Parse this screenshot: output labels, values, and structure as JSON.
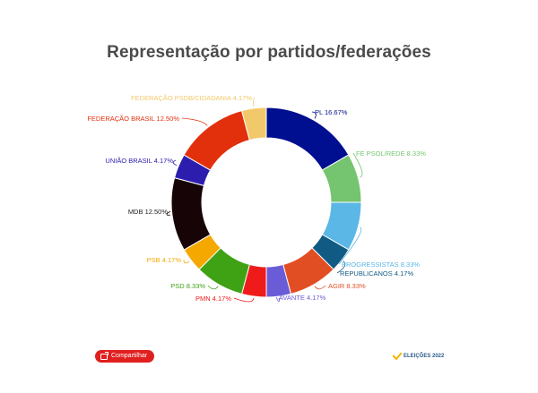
{
  "title": "Representação por partidos/federações",
  "share_label": "Compartilhar",
  "brand_label": "ELEIÇÕES 2022",
  "chart_data": {
    "type": "pie",
    "donut": true,
    "title": "Representação por partidos/federações",
    "slices": [
      {
        "label": "PL",
        "value": 16.67,
        "display": "PL 16.67%",
        "color": "#000f8f"
      },
      {
        "label": "FE PSOL/REDE",
        "value": 8.33,
        "display": "FE PSOL/REDE 8.33%",
        "color": "#75c46f"
      },
      {
        "label": "PROGRESSISTAS",
        "value": 8.33,
        "display": "PROGRESSISTAS 8.33%",
        "color": "#5ab7e6"
      },
      {
        "label": "REPUBLICANOS",
        "value": 4.17,
        "display": "REPUBLICANOS 4.17%",
        "color": "#105a84"
      },
      {
        "label": "AGIR",
        "value": 8.33,
        "display": "AGIR 8.33%",
        "color": "#e24e24"
      },
      {
        "label": "AVANTE",
        "value": 4.17,
        "display": "AVANTE 4.17%",
        "color": "#6a5bd6"
      },
      {
        "label": "PMN",
        "value": 4.17,
        "display": "PMN 4.17%",
        "color": "#ef1b1b"
      },
      {
        "label": "PSD",
        "value": 8.33,
        "display": "PSD 8.33%",
        "color": "#3fa214"
      },
      {
        "label": "PSB",
        "value": 4.17,
        "display": "PSB 4.17%",
        "color": "#f5a800"
      },
      {
        "label": "MDB",
        "value": 12.5,
        "display": "MDB 12.50%",
        "color": "#170406"
      },
      {
        "label": "UNIÃO BRASIL",
        "value": 4.17,
        "display": "UNIÃO BRASIL 4.17%",
        "color": "#2c1dae"
      },
      {
        "label": "FEDERAÇÃO BRASIL",
        "value": 12.5,
        "display": "FEDERAÇÃO BRASIL 12.50%",
        "color": "#e2300c"
      },
      {
        "label": "FEDERAÇÃO PSDB/CIDADANIA",
        "value": 4.17,
        "display": "FEDERAÇÃO PSDB/CIDADANIA 4.17%",
        "color": "#f2c96a"
      }
    ]
  }
}
